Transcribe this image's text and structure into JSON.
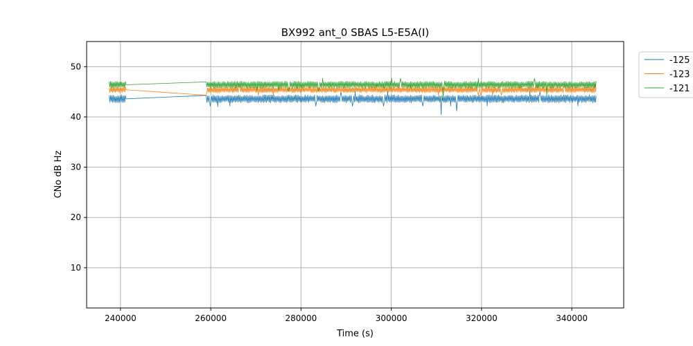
{
  "chart_data": {
    "type": "line",
    "title": "BX992 ant_0 SBAS L5-E5A(I)",
    "xlabel": "Time (s)",
    "ylabel": "CNo dB Hz",
    "xlim": [
      232500,
      351500
    ],
    "ylim": [
      2,
      55
    ],
    "xticks": [
      240000,
      260000,
      280000,
      300000,
      320000,
      340000
    ],
    "yticks": [
      10,
      20,
      30,
      40,
      50
    ],
    "grid": true,
    "legend_position": "outside-top-right",
    "segments": [
      {
        "start": 237500,
        "end": 241200
      },
      {
        "start": 259000,
        "end": 345500
      }
    ],
    "series": [
      {
        "name": "-125",
        "color": "#1f77b4",
        "mean": 43.6,
        "noise": 1.6,
        "dips": [
          {
            "x": 311000,
            "y": 40.5
          },
          {
            "x": 314500,
            "y": 41.2
          },
          {
            "x": 261500,
            "y": 42.0
          }
        ]
      },
      {
        "name": "-123",
        "color": "#ff7f0e",
        "mean": 45.4,
        "noise": 1.2,
        "dips": []
      },
      {
        "name": "-121",
        "color": "#2ca02c",
        "mean": 46.4,
        "noise": 1.4,
        "dips": [
          {
            "x": 311500,
            "y": 43.4
          },
          {
            "x": 334500,
            "y": 44.2
          }
        ]
      }
    ]
  }
}
